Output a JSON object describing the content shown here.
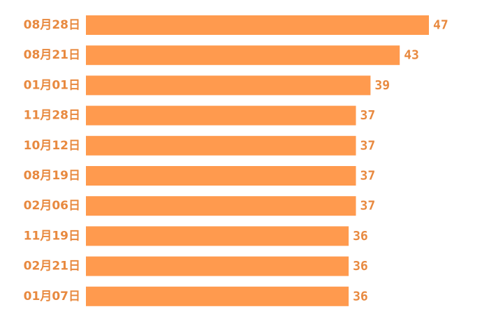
{
  "colors": {
    "bar": "#FF9A4E",
    "label": "#E8893F",
    "background": "#FFFFFF"
  },
  "chart_data": {
    "type": "bar",
    "orientation": "horizontal",
    "categories": [
      "08月28日",
      "08月21日",
      "01月01日",
      "11月28日",
      "10月12日",
      "08月19日",
      "02月06日",
      "11月19日",
      "02月21日",
      "01月07日"
    ],
    "values": [
      47,
      43,
      39,
      37,
      37,
      37,
      37,
      36,
      36,
      36
    ],
    "xlim": [
      0,
      47
    ],
    "grid": false,
    "legend": "none"
  }
}
